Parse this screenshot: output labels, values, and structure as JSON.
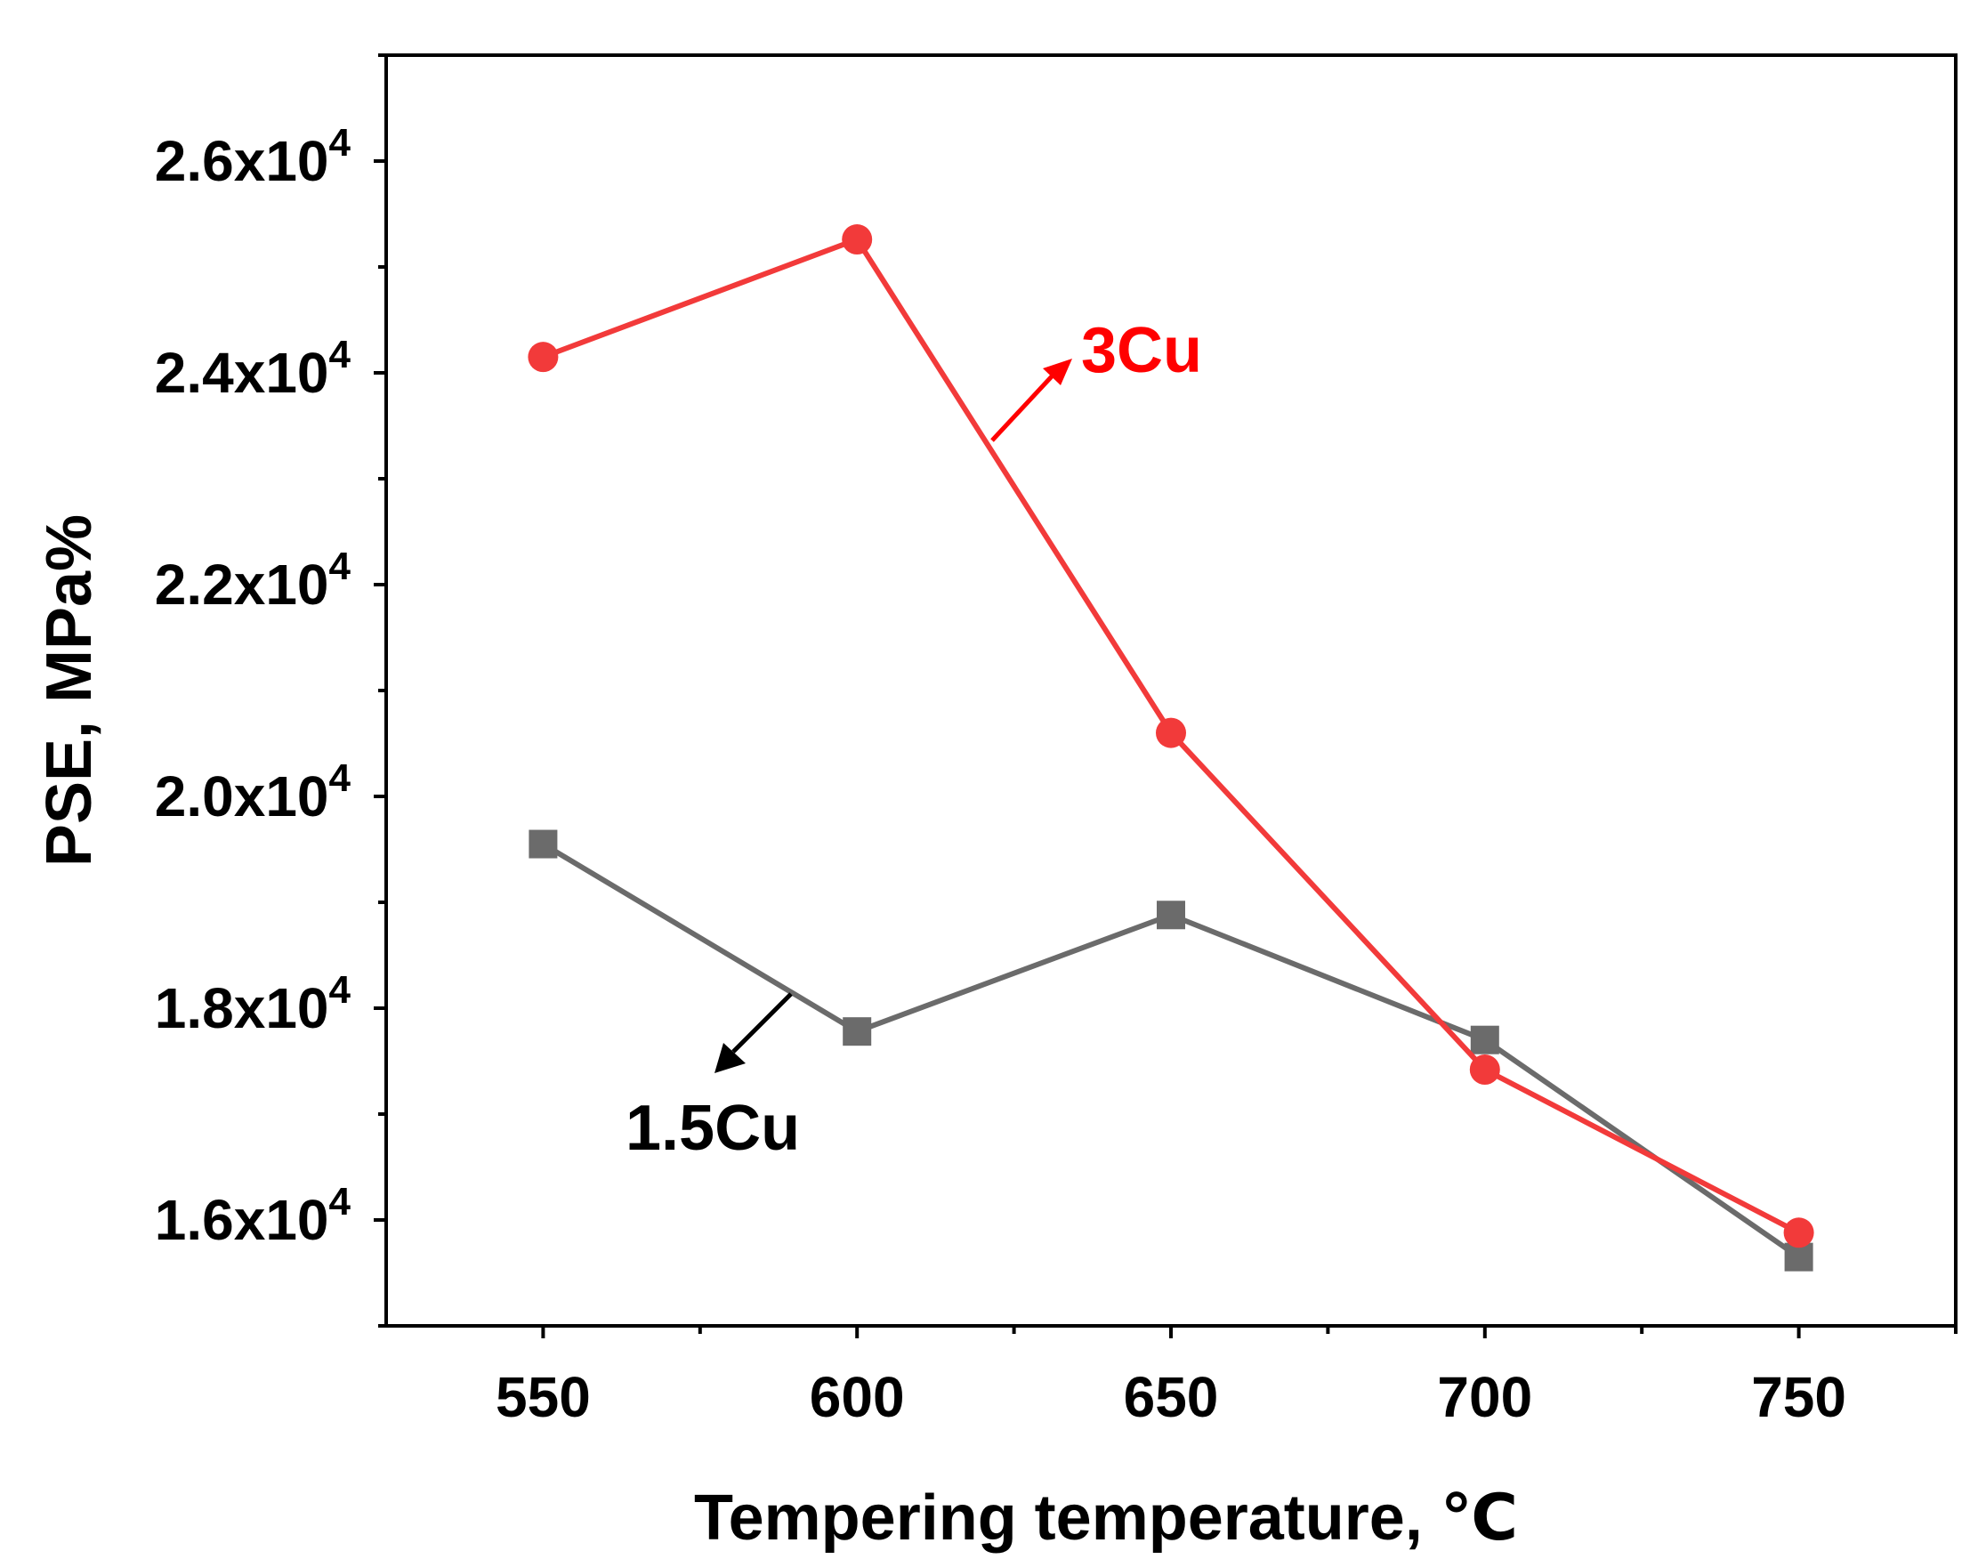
{
  "chart_data": {
    "type": "line",
    "title": "",
    "xlabel": "Tempering temperature, ℃",
    "ylabel": "PSE, MPa%",
    "x": [
      550,
      600,
      650,
      700,
      750
    ],
    "xlim": [
      525,
      775
    ],
    "ylim": [
      15000,
      27000
    ],
    "x_ticks": [
      "550",
      "600",
      "650",
      "700",
      "750"
    ],
    "y_ticks": [
      {
        "value": 16000,
        "mantissa": "1.6x10",
        "exp": "4"
      },
      {
        "value": 18000,
        "mantissa": "1.8x10",
        "exp": "4"
      },
      {
        "value": 20000,
        "mantissa": "2.0x10",
        "exp": "4"
      },
      {
        "value": 22000,
        "mantissa": "2.2x10",
        "exp": "4"
      },
      {
        "value": 24000,
        "mantissa": "2.4x10",
        "exp": "4"
      },
      {
        "value": 26000,
        "mantissa": "2.6x10",
        "exp": "4"
      }
    ],
    "grid": false,
    "series": [
      {
        "name": "1.5Cu",
        "marker": "square",
        "color": "#6b6b6b",
        "values": [
          19550,
          17780,
          18880,
          17700,
          15650
        ]
      },
      {
        "name": "3Cu",
        "marker": "circle",
        "color": "#f23a3a",
        "values": [
          24150,
          25260,
          20600,
          17420,
          15880
        ]
      }
    ],
    "annotations": [
      {
        "text": "3Cu",
        "color": "#ff0000"
      },
      {
        "text": "1.5Cu",
        "color": "#000000"
      }
    ]
  }
}
